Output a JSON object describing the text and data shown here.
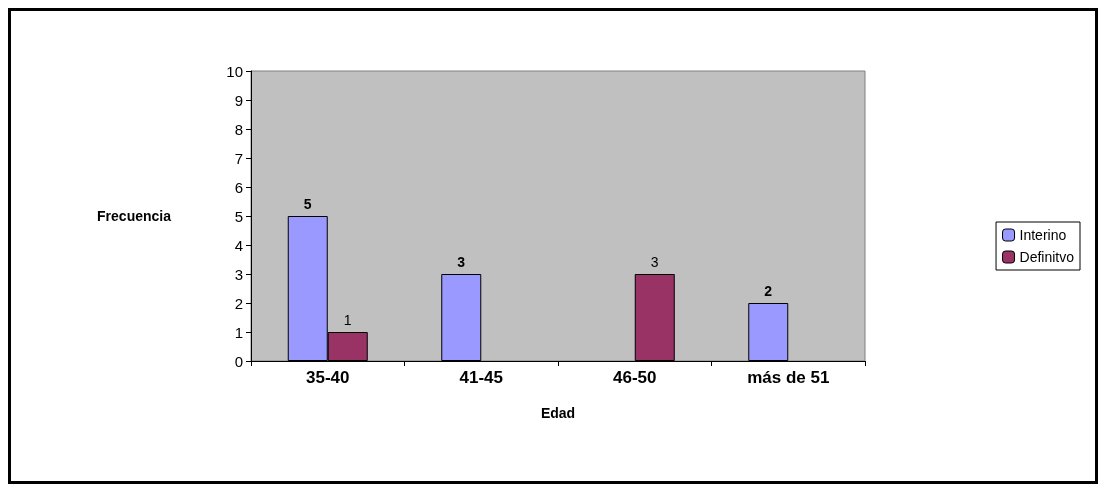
{
  "chart_data": {
    "type": "bar",
    "categories": [
      "35-40",
      "41-45",
      "46-50",
      "más de 51"
    ],
    "series": [
      {
        "name": "Interino",
        "color": "#9999ff",
        "values": [
          5,
          3,
          null,
          2
        ]
      },
      {
        "name": "Definitvo",
        "color": "#993366",
        "values": [
          1,
          null,
          3,
          null
        ]
      }
    ],
    "xlabel": "Edad",
    "ylabel": "Frecuencia",
    "ylim": [
      0,
      10
    ],
    "yticks": [
      0,
      1,
      2,
      3,
      4,
      5,
      6,
      7,
      8,
      9,
      10
    ],
    "grid": false,
    "legend": "right",
    "data_labels": true
  }
}
